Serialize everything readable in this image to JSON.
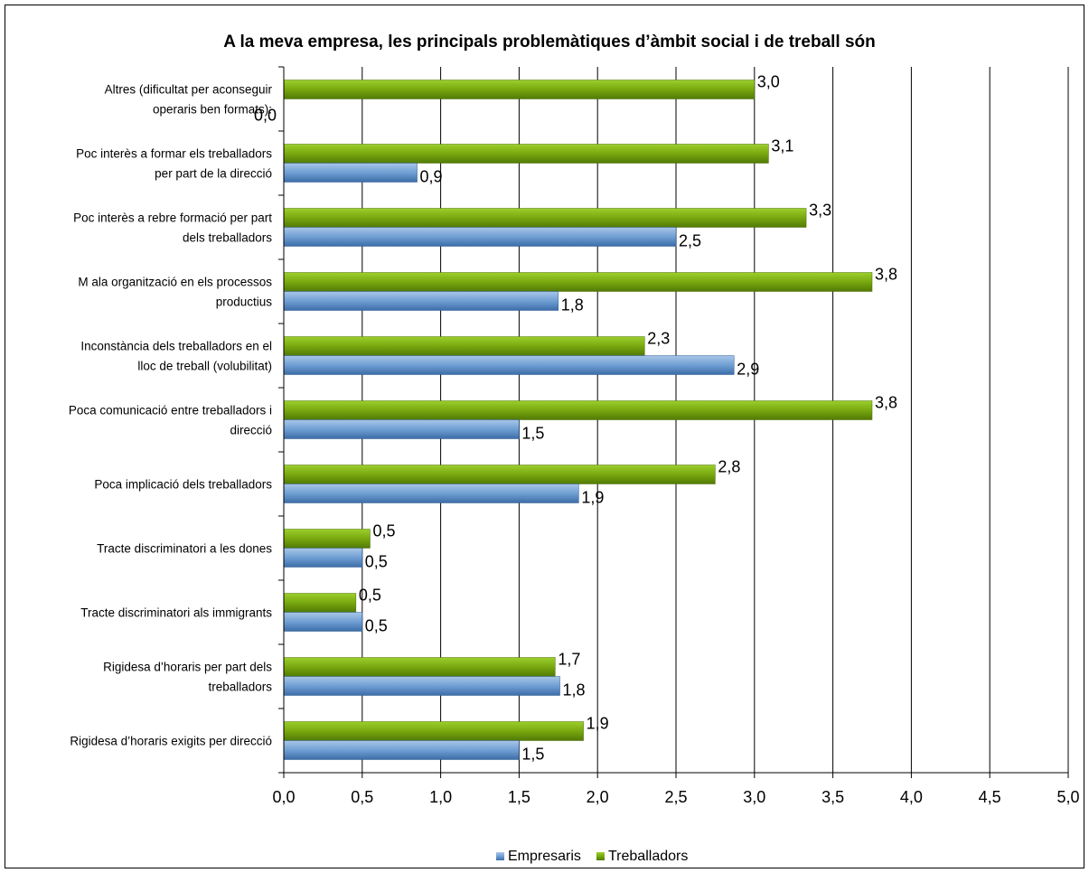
{
  "chart_data": {
    "type": "bar",
    "orientation": "horizontal",
    "title": "A la meva empresa, les principals problemàtiques d’àmbit social i de treball són",
    "categories": [
      [
        "Altres (dificultat per aconseguir",
        "operaris ben formats):"
      ],
      [
        "Poc interès a formar els treballadors",
        "per part de la direcció"
      ],
      [
        "Poc interès a rebre formació per part",
        "dels treballadors"
      ],
      [
        "M ala organització en els processos",
        "productius"
      ],
      [
        "Inconstància dels treballadors en el",
        "lloc de treball (volubilitat)"
      ],
      [
        "Poca comunicació entre treballadors i",
        "direcció"
      ],
      [
        "Poca implicació dels treballadors"
      ],
      [
        "Tracte discriminatori a les dones"
      ],
      [
        "Tracte discriminatori als immigrants"
      ],
      [
        "Rigidesa d’horaris per part dels",
        "treballadors"
      ],
      [
        "Rigidesa d’horaris exigits per direcció"
      ]
    ],
    "series": [
      {
        "name": "Empresaris",
        "color": "#5b8cc4",
        "values": [
          0.0,
          0.85,
          2.5,
          1.75,
          2.87,
          1.5,
          1.88,
          0.5,
          0.5,
          1.76,
          1.5
        ],
        "labels": [
          "0,0",
          "0,9",
          "2,5",
          "1,8",
          "2,9",
          "1,5",
          "1,9",
          "0,5",
          "0,5",
          "1,8",
          "1,5"
        ]
      },
      {
        "name": "Treballadors",
        "color": "#76a30e",
        "values": [
          3.0,
          3.09,
          3.33,
          3.75,
          2.3,
          3.75,
          2.75,
          0.55,
          0.46,
          1.73,
          1.91
        ],
        "labels": [
          "3,0",
          "3,1",
          "3,3",
          "3,8",
          "2,3",
          "3,8",
          "2,8",
          "0,5",
          "0,5",
          "1,7",
          "1,9"
        ]
      }
    ],
    "xlim": [
      0,
      5
    ],
    "xticks": [
      "0,0",
      "0,5",
      "1,0",
      "1,5",
      "2,0",
      "2,5",
      "3,0",
      "3,5",
      "4,0",
      "4,5",
      "5,0"
    ],
    "grid": "vertical",
    "legend_position": "bottom"
  }
}
